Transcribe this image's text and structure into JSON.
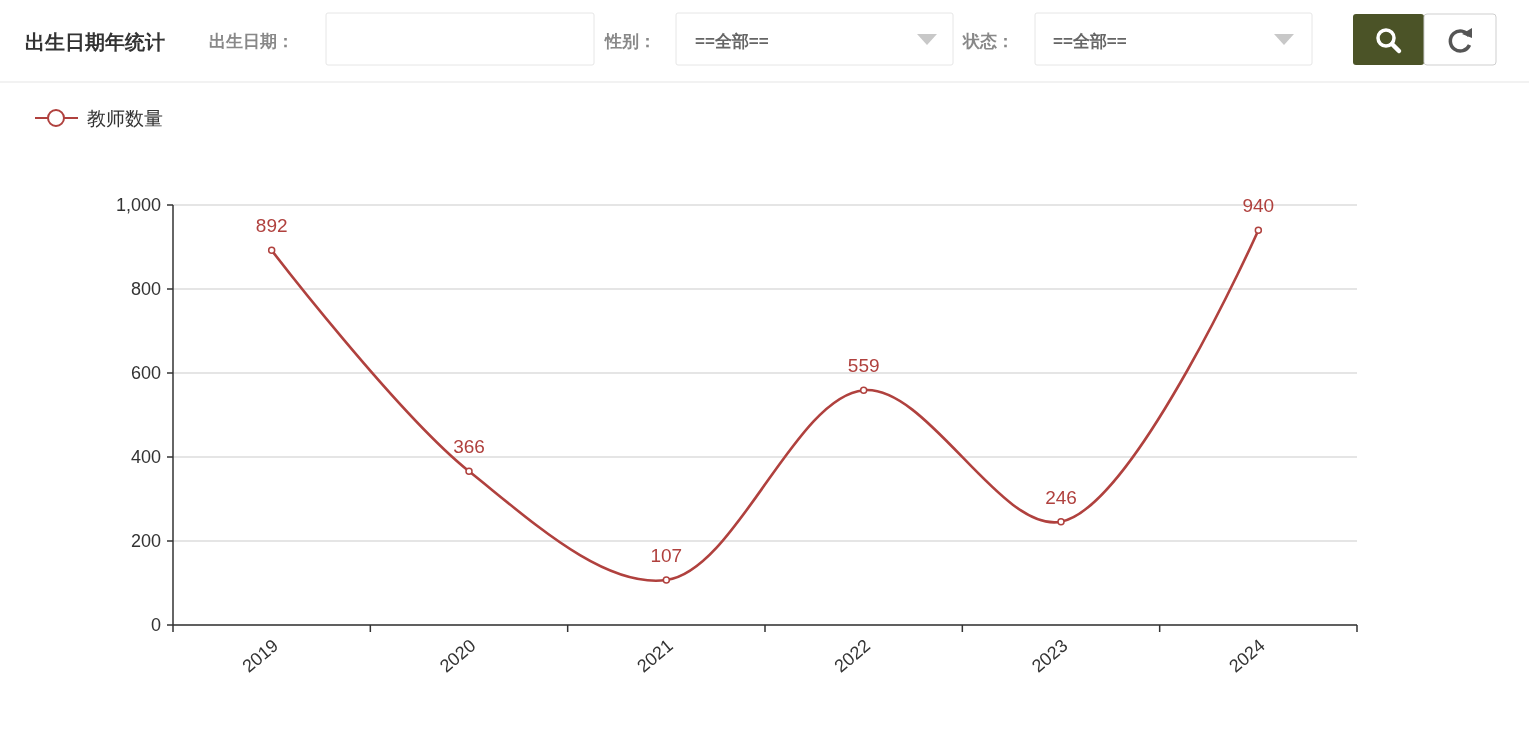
{
  "chart_data": {
    "type": "line",
    "title": "出生日期年统计",
    "annotations": [
      "出生日期：",
      "性别：",
      "==全部==",
      "状态：",
      "==全部=="
    ],
    "categories": [
      "2019",
      "2020",
      "2021",
      "2022",
      "2023",
      "2024"
    ],
    "series": [
      {
        "name": "教师数量",
        "color": "#b0413e",
        "values": [
          892,
          366,
          107,
          559,
          246,
          940
        ]
      }
    ],
    "ylim": [
      0,
      1000
    ],
    "yticks": [
      0,
      200,
      400,
      600,
      800,
      {
        "value": 1000,
        "label": "1,000"
      }
    ],
    "grid": "y",
    "legend": "top left",
    "marker": "circle",
    "line_style": "solid",
    "data_labels": true
  }
}
